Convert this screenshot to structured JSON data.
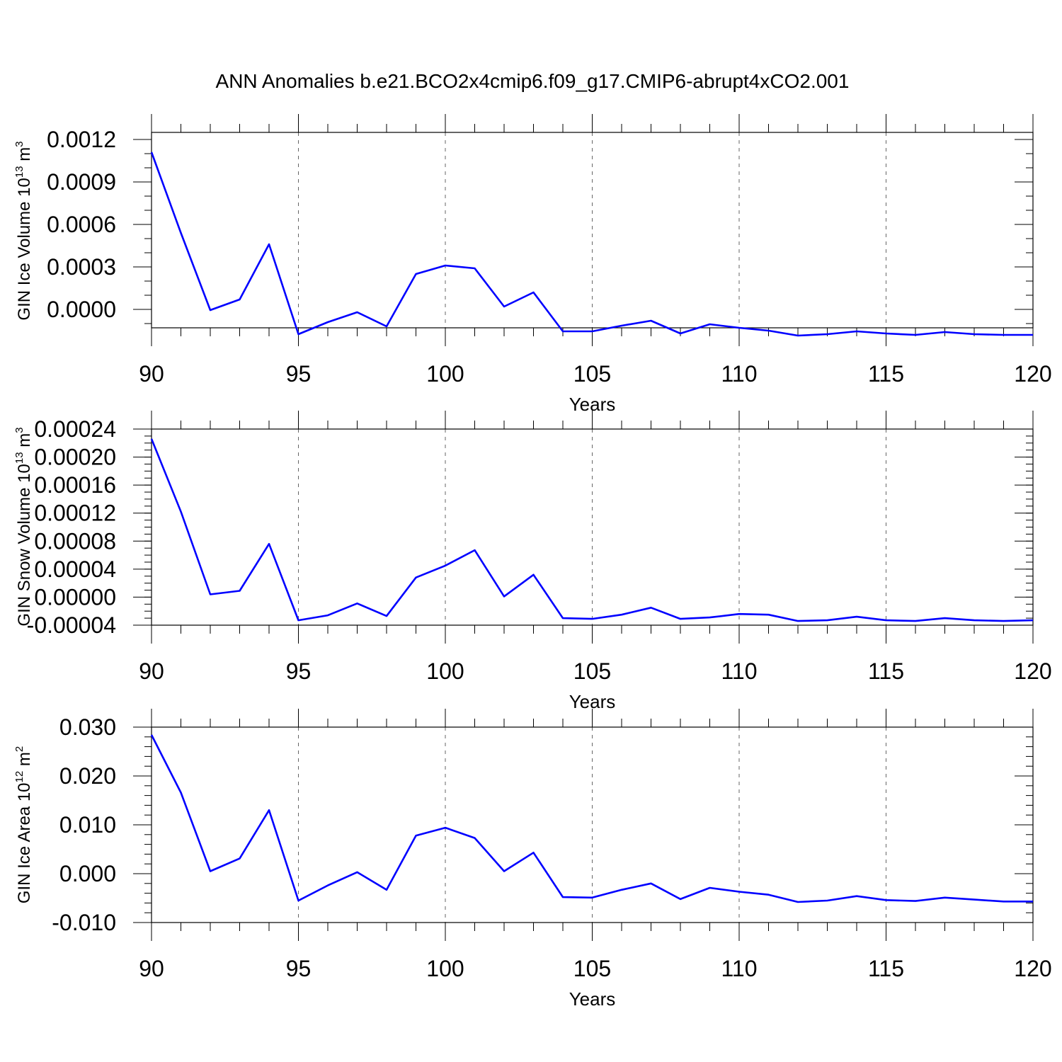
{
  "chart_data": [
    {
      "type": "line",
      "title": "ANN Anomalies b.e21.BCO2x4cmip6.f09_g17.CMIP6-abrupt4xCO2.001",
      "ylabel": {
        "text": "GIN Ice Volume 10",
        "exp": "13",
        "unit": " m",
        "unit_exp": "3"
      },
      "xlabel": "Years",
      "xlim": [
        90,
        120
      ],
      "ylim": [
        -0.00013,
        0.00125
      ],
      "yticks": [
        0.0,
        0.0003,
        0.0006,
        0.0009,
        0.0012
      ],
      "ytick_labels": [
        "0.0000",
        "0.0003",
        "0.0006",
        "0.0009",
        "0.0012"
      ],
      "xticks": [
        90,
        95,
        100,
        105,
        110,
        115,
        120
      ],
      "xtick_labels": [
        "90",
        "95",
        "100",
        "105",
        "110",
        "115",
        "120"
      ],
      "y_minor_step": 0.0001,
      "vgrid": [
        95,
        100,
        105,
        110,
        115
      ],
      "series": [
        {
          "name": "GIN Ice Volume",
          "color": "#0000ff",
          "x": [
            90,
            91,
            92,
            93,
            94,
            95,
            96,
            97,
            98,
            99,
            100,
            101,
            102,
            103,
            104,
            105,
            106,
            107,
            108,
            109,
            110,
            111,
            112,
            113,
            114,
            115,
            116,
            117,
            118,
            119,
            120
          ],
          "values": [
            0.00111,
            0.00054,
            -5e-06,
            7e-05,
            0.00046,
            -0.000175,
            -9e-05,
            -2e-05,
            -0.00012,
            0.00025,
            0.00031,
            0.00029,
            2e-05,
            0.00012,
            -0.000155,
            -0.000155,
            -0.000115,
            -8e-05,
            -0.00017,
            -0.000105,
            -0.00013,
            -0.00015,
            -0.000185,
            -0.000175,
            -0.000155,
            -0.00017,
            -0.00018,
            -0.00016,
            -0.000175,
            -0.00018,
            -0.00018
          ]
        }
      ]
    },
    {
      "type": "line",
      "ylabel": {
        "text": "GIN Snow Volume 10",
        "exp": "13",
        "unit": " m",
        "unit_exp": "3"
      },
      "xlabel": "Years",
      "xlim": [
        90,
        120
      ],
      "ylim": [
        -4e-05,
        0.00024
      ],
      "yticks": [
        -4e-05,
        0.0,
        4e-05,
        8e-05,
        0.00012,
        0.00016,
        0.0002,
        0.00024
      ],
      "ytick_labels": [
        "-0.00004",
        "0.00000",
        "0.00004",
        "0.00008",
        "0.00012",
        "0.00016",
        "0.00020",
        "0.00024"
      ],
      "xticks": [
        90,
        95,
        100,
        105,
        110,
        115,
        120
      ],
      "xtick_labels": [
        "90",
        "95",
        "100",
        "105",
        "110",
        "115",
        "120"
      ],
      "y_minor_step": 1e-05,
      "vgrid": [
        95,
        100,
        105,
        110,
        115
      ],
      "series": [
        {
          "name": "GIN Snow Volume",
          "color": "#0000ff",
          "x": [
            90,
            91,
            92,
            93,
            94,
            95,
            96,
            97,
            98,
            99,
            100,
            101,
            102,
            103,
            104,
            105,
            106,
            107,
            108,
            109,
            110,
            111,
            112,
            113,
            114,
            115,
            116,
            117,
            118,
            119,
            120
          ],
          "values": [
            0.000226,
            0.000122,
            4e-06,
            9e-06,
            7.6e-05,
            -3.3e-05,
            -2.6e-05,
            -9e-06,
            -2.7e-05,
            2.8e-05,
            4.5e-05,
            6.7e-05,
            1e-06,
            3.2e-05,
            -3e-05,
            -3.1e-05,
            -2.5e-05,
            -1.5e-05,
            -3.1e-05,
            -2.9e-05,
            -2.4e-05,
            -2.5e-05,
            -3.4e-05,
            -3.3e-05,
            -2.8e-05,
            -3.3e-05,
            -3.4e-05,
            -3e-05,
            -3.3e-05,
            -3.4e-05,
            -3.3e-05
          ]
        }
      ]
    },
    {
      "type": "line",
      "ylabel": {
        "text": "GIN Ice Area 10",
        "exp": "12",
        "unit": " m",
        "unit_exp": "2"
      },
      "xlabel": "Years",
      "xlim": [
        90,
        120
      ],
      "ylim": [
        -0.01,
        0.03
      ],
      "yticks": [
        -0.01,
        0.0,
        0.01,
        0.02,
        0.03
      ],
      "ytick_labels": [
        "-0.010",
        "0.000",
        "0.010",
        "0.020",
        "0.030"
      ],
      "xticks": [
        90,
        95,
        100,
        105,
        110,
        115,
        120
      ],
      "xtick_labels": [
        "90",
        "95",
        "100",
        "105",
        "110",
        "115",
        "120"
      ],
      "y_minor_step": 0.002,
      "vgrid": [
        95,
        100,
        105,
        110,
        115
      ],
      "series": [
        {
          "name": "GIN Ice Area",
          "color": "#0000ff",
          "x": [
            90,
            91,
            92,
            93,
            94,
            95,
            96,
            97,
            98,
            99,
            100,
            101,
            102,
            103,
            104,
            105,
            106,
            107,
            108,
            109,
            110,
            111,
            112,
            113,
            114,
            115,
            116,
            117,
            118,
            119,
            120
          ],
          "values": [
            0.0284,
            0.0166,
            0.0005,
            0.0031,
            0.013,
            -0.0055,
            -0.0024,
            0.0003,
            -0.0033,
            0.0078,
            0.0094,
            0.0073,
            0.0005,
            0.0043,
            -0.0048,
            -0.0049,
            -0.0033,
            -0.002,
            -0.0052,
            -0.0029,
            -0.0037,
            -0.0043,
            -0.0058,
            -0.0055,
            -0.0046,
            -0.0054,
            -0.0056,
            -0.0049,
            -0.0053,
            -0.0057,
            -0.0057
          ]
        }
      ]
    }
  ]
}
